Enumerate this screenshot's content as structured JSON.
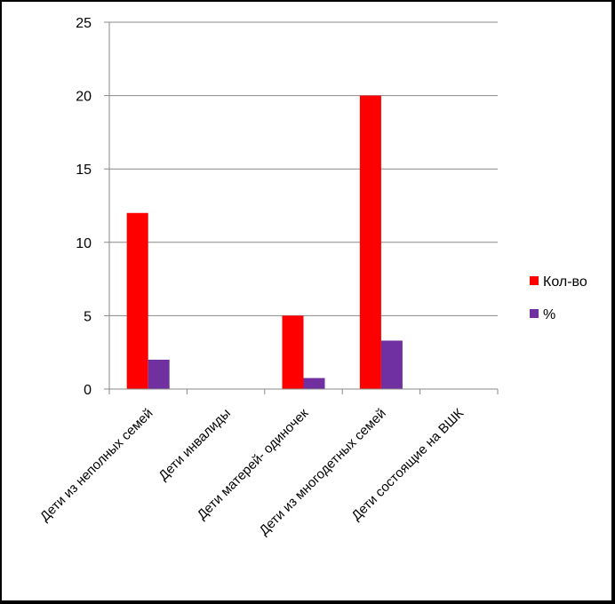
{
  "chart_data": {
    "type": "bar",
    "categories": [
      "Дети из неполных семей",
      "Дети инвалиды",
      "Дети матерей- одиночек",
      "Дети  из многодетных семей",
      "Дети  состоящие на ВШК"
    ],
    "series": [
      {
        "name": "Кол-во",
        "color": "#FF0000",
        "values": [
          12,
          0,
          5,
          20,
          0
        ]
      },
      {
        "name": "%",
        "color": "#7030A0",
        "values": [
          2,
          0,
          0.75,
          3.3,
          0
        ]
      }
    ],
    "ylim": [
      0,
      25
    ],
    "yticks": [
      0,
      5,
      10,
      15,
      20,
      25
    ],
    "grid": true,
    "legend": "right"
  }
}
